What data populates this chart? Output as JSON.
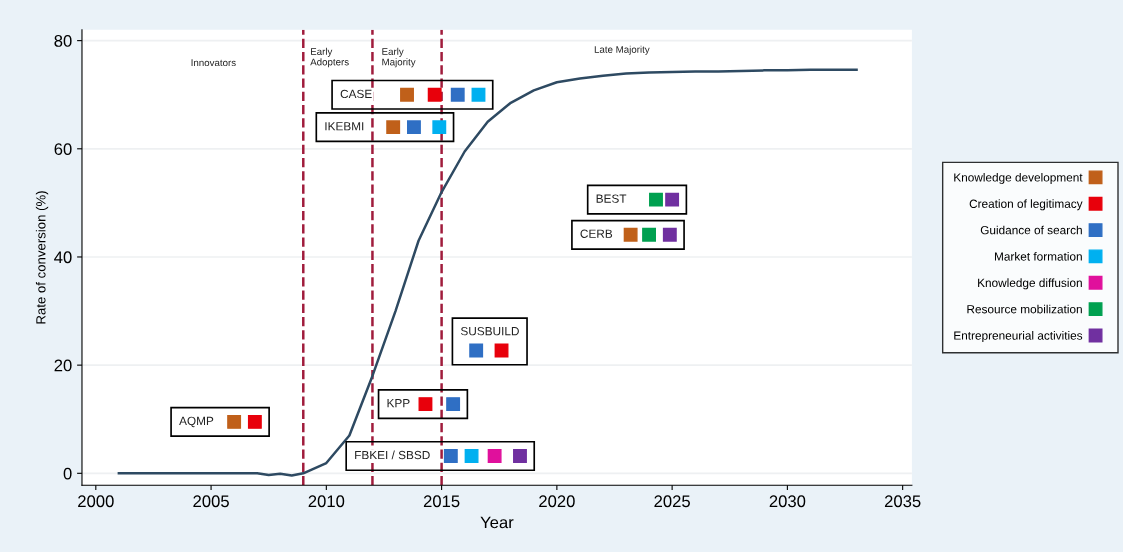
{
  "chart_data": {
    "type": "line",
    "xlabel": "Year",
    "ylabel": "Rate of conversion (%)",
    "xlim": [
      1999.4,
      2035.4
    ],
    "ylim": [
      -2.2,
      82
    ],
    "xticks": [
      2000,
      2005,
      2010,
      2015,
      2020,
      2025,
      2030,
      2035
    ],
    "yticks": [
      0,
      20,
      40,
      60,
      80
    ],
    "grid": "y",
    "legend": "right",
    "series": [
      {
        "color": "#2e4a62",
        "marker": "none",
        "line_style": "solid",
        "x": [
          2001,
          2003,
          2005,
          2007,
          2007.5,
          2008,
          2008.5,
          2009,
          2010,
          2011,
          2012,
          2013,
          2014,
          2015,
          2016,
          2017,
          2018,
          2019,
          2020,
          2021,
          2022,
          2023,
          2024,
          2025,
          2026,
          2027,
          2028,
          2029,
          2030,
          2031,
          2032,
          2033
        ],
        "values": [
          0,
          0,
          0,
          0,
          -0.3,
          -0.1,
          -0.4,
          0,
          1.9,
          7,
          18,
          30,
          43,
          52,
          59.5,
          65,
          68.5,
          70.8,
          72.3,
          73,
          73.5,
          73.9,
          74.1,
          74.2,
          74.3,
          74.3,
          74.4,
          74.5,
          74.5,
          74.6,
          74.6,
          74.6
        ]
      },
      {
        "type": "scatter",
        "name": "Knowledge development",
        "color": "#c0601a",
        "marker": "square",
        "x": [
          2013.5,
          2012.9,
          2006.0,
          2023.2
        ],
        "values": [
          70,
          64,
          9.5,
          44.1
        ]
      },
      {
        "type": "scatter",
        "name": "Creation of legitimacy",
        "color": "#e8000b",
        "marker": "square",
        "x": [
          2014.7,
          2006.9,
          2014.3,
          2017.6
        ],
        "values": [
          70,
          9.5,
          12.8,
          22.7
        ]
      },
      {
        "type": "scatter",
        "name": "Guidance of search",
        "color": "#2f6fc4",
        "marker": "square",
        "x": [
          2015.7,
          2013.8,
          2015.5,
          2015.4,
          2016.5
        ],
        "values": [
          70,
          64,
          12.8,
          3.2,
          22.7
        ]
      },
      {
        "type": "scatter",
        "name": "Market formation",
        "color": "#00b0f0",
        "marker": "square",
        "x": [
          2016.6,
          2014.9,
          2016.3
        ],
        "values": [
          70,
          64,
          3.2
        ]
      },
      {
        "type": "scatter",
        "name": "Knowledge diffusion",
        "color": "#e0109c",
        "marker": "square",
        "x": [
          2017.3
        ],
        "values": [
          3.2
        ]
      },
      {
        "type": "scatter",
        "name": "Resource mobilization",
        "color": "#00a050",
        "marker": "square",
        "x": [
          2024.3,
          2024.0
        ],
        "values": [
          50.6,
          44.1
        ]
      },
      {
        "type": "scatter",
        "name": "Entrepreneurial activities",
        "color": "#7030a0",
        "marker": "square",
        "x": [
          2018.4,
          2025.0,
          2024.9
        ],
        "values": [
          3.2,
          50.6,
          44.1
        ]
      }
    ],
    "ref_lines": [
      {
        "axis": "x",
        "value": 2009,
        "color": "#a01c3c",
        "line_style": "dashed"
      },
      {
        "axis": "x",
        "value": 2012,
        "color": "#a01c3c",
        "line_style": "dashed"
      },
      {
        "axis": "x",
        "value": 2015,
        "color": "#a01c3c",
        "line_style": "dashed"
      }
    ],
    "annotations": [
      "Innovators",
      "Early\nAdopters",
      "Early\nMajority",
      "Late Majority",
      "CASE",
      "IKEBMI",
      "AQMP",
      "KPP",
      "FBKEI / SBSD",
      "SUSBUILD",
      "BEST",
      "CERB"
    ]
  }
}
